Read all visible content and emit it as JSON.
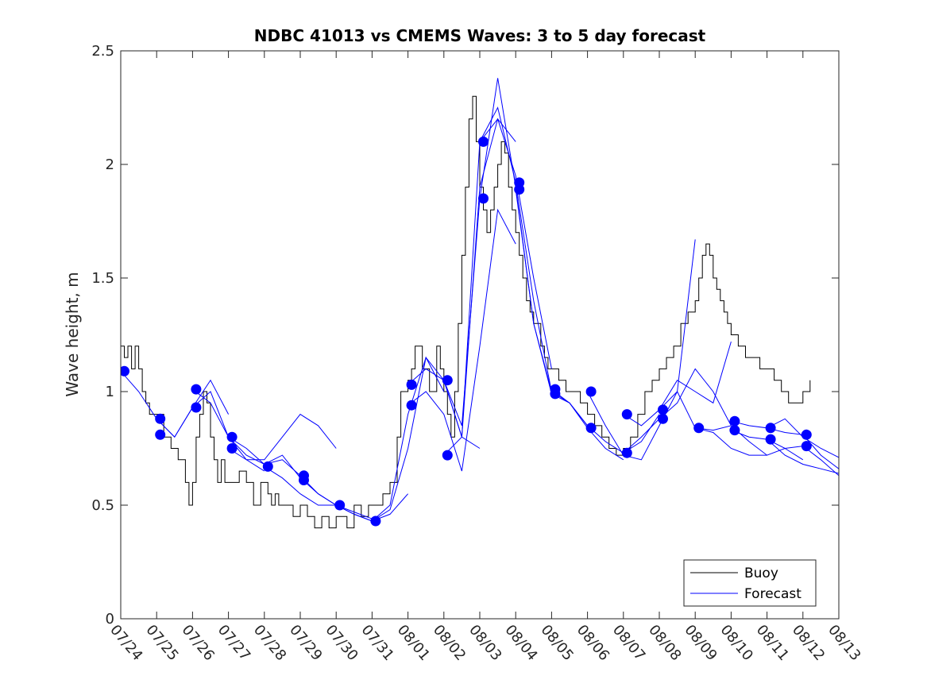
{
  "chart_data": {
    "type": "line",
    "title": "NDBC 41013 vs CMEMS Waves: 3 to 5 day forecast",
    "xlabel": "",
    "ylabel": "Wave height, m",
    "xlim": [
      0,
      20
    ],
    "ylim": [
      0,
      2.5
    ],
    "yticks": [
      0,
      0.5,
      1,
      1.5,
      2,
      2.5
    ],
    "ytick_labels": [
      "0",
      "0.5",
      "1",
      "1.5",
      "2",
      "2.5"
    ],
    "xtick_values": [
      0,
      1,
      2,
      3,
      4,
      5,
      6,
      7,
      8,
      9,
      10,
      11,
      12,
      13,
      14,
      15,
      16,
      17,
      18,
      19,
      20
    ],
    "xtick_labels": [
      "07/24",
      "07/25",
      "07/26",
      "07/27",
      "07/28",
      "07/29",
      "07/30",
      "07/31",
      "08/01",
      "08/02",
      "08/03",
      "08/04",
      "08/05",
      "08/06",
      "08/07",
      "08/08",
      "08/09",
      "08/10",
      "08/11",
      "08/12",
      "08/13"
    ],
    "x_units": "days since 07/24",
    "grid": false,
    "legend": {
      "placement": "bottom-right",
      "entries": [
        {
          "label": "Buoy",
          "color": "#000000"
        },
        {
          "label": "Forecast",
          "color": "#0000ff"
        }
      ]
    },
    "buoy": {
      "name": "Buoy",
      "color": "#000000",
      "x": [
        0,
        0.1,
        0.2,
        0.3,
        0.4,
        0.5,
        0.6,
        0.7,
        0.8,
        1.0,
        1.2,
        1.4,
        1.6,
        1.8,
        1.9,
        2.0,
        2.1,
        2.2,
        2.3,
        2.4,
        2.5,
        2.6,
        2.7,
        2.8,
        2.9,
        3.0,
        3.1,
        3.3,
        3.5,
        3.7,
        3.9,
        4.0,
        4.1,
        4.2,
        4.3,
        4.4,
        4.5,
        4.6,
        4.7,
        4.8,
        5.0,
        5.2,
        5.4,
        5.6,
        5.8,
        6.0,
        6.1,
        6.3,
        6.5,
        6.7,
        6.9,
        7.0,
        7.1,
        7.3,
        7.5,
        7.7,
        7.8,
        8.0,
        8.1,
        8.2,
        8.4,
        8.6,
        8.8,
        8.9,
        9.0,
        9.1,
        9.2,
        9.3,
        9.4,
        9.5,
        9.6,
        9.7,
        9.8,
        9.9,
        10.0,
        10.1,
        10.2,
        10.3,
        10.4,
        10.5,
        10.6,
        10.7,
        10.8,
        10.9,
        11.0,
        11.1,
        11.2,
        11.3,
        11.4,
        11.5,
        11.6,
        11.7,
        11.8,
        11.9,
        12.0,
        12.2,
        12.4,
        12.6,
        12.8,
        13.0,
        13.2,
        13.4,
        13.6,
        13.8,
        14.0,
        14.2,
        14.4,
        14.6,
        14.8,
        15.0,
        15.2,
        15.4,
        15.6,
        15.8,
        16.0,
        16.1,
        16.2,
        16.3,
        16.4,
        16.5,
        16.6,
        16.7,
        16.8,
        16.9,
        17.0,
        17.2,
        17.4,
        17.6,
        17.8,
        18.0,
        18.2,
        18.4,
        18.6,
        18.8,
        19.0,
        19.2
      ],
      "y": [
        1.2,
        1.15,
        1.2,
        1.1,
        1.2,
        1.1,
        1.0,
        0.95,
        0.9,
        0.9,
        0.8,
        0.75,
        0.7,
        0.6,
        0.5,
        0.6,
        0.8,
        0.9,
        1.0,
        0.95,
        0.8,
        0.7,
        0.6,
        0.7,
        0.6,
        0.6,
        0.6,
        0.65,
        0.6,
        0.5,
        0.6,
        0.6,
        0.55,
        0.5,
        0.55,
        0.5,
        0.5,
        0.5,
        0.5,
        0.45,
        0.5,
        0.45,
        0.4,
        0.45,
        0.4,
        0.45,
        0.45,
        0.4,
        0.5,
        0.45,
        0.5,
        0.5,
        0.5,
        0.55,
        0.6,
        0.8,
        1.0,
        1.05,
        1.1,
        1.2,
        1.1,
        1.0,
        1.2,
        1.1,
        1.0,
        0.9,
        0.8,
        1.0,
        1.3,
        1.6,
        1.9,
        2.2,
        2.3,
        2.1,
        1.9,
        1.8,
        1.7,
        1.8,
        1.9,
        2.0,
        2.1,
        2.05,
        1.9,
        1.8,
        1.7,
        1.6,
        1.5,
        1.4,
        1.35,
        1.3,
        1.3,
        1.2,
        1.15,
        1.1,
        1.1,
        1.05,
        1.0,
        1.0,
        0.95,
        0.9,
        0.85,
        0.8,
        0.75,
        0.72,
        0.75,
        0.8,
        0.9,
        1.0,
        1.05,
        1.1,
        1.15,
        1.2,
        1.3,
        1.35,
        1.4,
        1.5,
        1.6,
        1.65,
        1.6,
        1.5,
        1.45,
        1.4,
        1.35,
        1.3,
        1.25,
        1.2,
        1.15,
        1.15,
        1.1,
        1.1,
        1.05,
        1.0,
        0.95,
        0.95,
        1.0,
        1.05
      ]
    },
    "forecasts": [
      {
        "color": "#0000ff",
        "x": [
          0,
          0.5,
          1,
          1.5,
          2,
          2.5,
          3
        ],
        "y": [
          1.09,
          1.0,
          0.88,
          0.8,
          0.93,
          1.05,
          0.9
        ]
      },
      {
        "color": "#0000ff",
        "x": [
          1,
          1.5,
          2,
          2.5,
          3,
          3.5,
          4
        ],
        "y": [
          0.88,
          0.8,
          0.93,
          1.0,
          0.8,
          0.7,
          0.65
        ]
      },
      {
        "color": "#0000ff",
        "x": [
          2,
          2.5,
          3,
          3.5,
          4,
          4.5,
          5
        ],
        "y": [
          1.01,
          0.95,
          0.8,
          0.72,
          0.68,
          0.7,
          0.63
        ]
      },
      {
        "color": "#0000ff",
        "x": [
          3,
          3.5,
          4,
          4.5,
          5,
          5.5,
          6
        ],
        "y": [
          0.8,
          0.75,
          0.68,
          0.72,
          0.62,
          0.55,
          0.5
        ]
      },
      {
        "color": "#0000ff",
        "x": [
          3,
          3.5,
          4,
          4.5,
          5,
          5.5,
          6
        ],
        "y": [
          0.75,
          0.7,
          0.7,
          0.8,
          0.9,
          0.85,
          0.75
        ]
      },
      {
        "color": "#0000ff",
        "x": [
          4,
          4.5,
          5,
          5.5,
          6,
          6.5,
          7
        ],
        "y": [
          0.67,
          0.62,
          0.55,
          0.5,
          0.5,
          0.47,
          0.44
        ]
      },
      {
        "color": "#0000ff",
        "x": [
          5,
          5.5,
          6,
          6.5,
          7,
          7.5,
          8
        ],
        "y": [
          0.63,
          0.55,
          0.5,
          0.46,
          0.43,
          0.46,
          0.55
        ]
      },
      {
        "color": "#0000ff",
        "x": [
          6,
          6.5,
          7,
          7.5,
          8,
          8.5,
          9
        ],
        "y": [
          0.5,
          0.46,
          0.43,
          0.5,
          0.9,
          1.15,
          1.0
        ]
      },
      {
        "color": "#0000ff",
        "x": [
          7,
          7.5,
          8,
          8.5,
          9,
          9.5,
          10
        ],
        "y": [
          0.43,
          0.48,
          0.75,
          1.15,
          1.05,
          0.8,
          0.75
        ]
      },
      {
        "color": "#0000ff",
        "x": [
          8,
          8.5,
          9,
          9.5,
          10,
          10.5,
          11
        ],
        "y": [
          1.03,
          1.1,
          1.05,
          0.8,
          1.9,
          2.2,
          2.1
        ]
      },
      {
        "color": "#0000ff",
        "x": [
          8,
          8.5,
          9,
          9.5,
          10,
          10.5,
          11
        ],
        "y": [
          0.94,
          1.0,
          0.9,
          0.65,
          1.2,
          1.8,
          1.65
        ]
      },
      {
        "color": "#0000ff",
        "x": [
          9,
          9.5,
          10,
          10.5,
          11,
          11.5,
          12
        ],
        "y": [
          1.05,
          0.85,
          1.85,
          2.38,
          1.9,
          1.3,
          1.0
        ]
      },
      {
        "color": "#0000ff",
        "x": [
          9,
          9.5,
          10,
          10.5,
          11,
          11.5,
          12
        ],
        "y": [
          0.72,
          0.8,
          2.1,
          2.2,
          1.95,
          1.5,
          1.1
        ]
      },
      {
        "color": "#0000ff",
        "x": [
          10,
          10.5,
          11,
          11.5,
          12,
          12.5,
          13
        ],
        "y": [
          2.1,
          2.25,
          1.92,
          1.4,
          1.0,
          0.95,
          0.85
        ]
      },
      {
        "color": "#0000ff",
        "x": [
          11,
          11.5,
          12,
          12.5,
          13,
          13.5,
          14
        ],
        "y": [
          1.89,
          1.3,
          0.99,
          0.95,
          0.84,
          0.75,
          0.7
        ]
      },
      {
        "color": "#0000ff",
        "x": [
          12,
          12.5,
          13,
          13.5,
          14,
          14.5,
          15
        ],
        "y": [
          1.01,
          0.95,
          0.85,
          0.78,
          0.73,
          0.78,
          0.9
        ]
      },
      {
        "color": "#0000ff",
        "x": [
          13,
          13.5,
          14,
          14.5,
          15,
          15.5,
          16
        ],
        "y": [
          1.0,
          0.85,
          0.72,
          0.7,
          0.85,
          1.0,
          1.67
        ]
      },
      {
        "color": "#0000ff",
        "x": [
          14,
          14.5,
          15,
          15.5,
          16,
          16.5,
          17
        ],
        "y": [
          0.9,
          0.85,
          0.92,
          1.05,
          1.0,
          0.95,
          1.22
        ]
      },
      {
        "color": "#0000ff",
        "x": [
          14,
          14.5,
          15,
          15.5,
          16,
          16.5,
          17
        ],
        "y": [
          0.73,
          0.8,
          0.88,
          0.95,
          1.1,
          1.0,
          0.85
        ]
      },
      {
        "color": "#0000ff",
        "x": [
          15,
          15.5,
          16,
          16.5,
          17,
          17.5,
          18
        ],
        "y": [
          0.92,
          1.0,
          0.84,
          0.82,
          0.75,
          0.72,
          0.72
        ]
      },
      {
        "color": "#0000ff",
        "x": [
          16,
          16.5,
          17,
          17.5,
          18,
          18.5,
          19
        ],
        "y": [
          0.84,
          0.83,
          0.85,
          0.78,
          0.72,
          0.75,
          0.7
        ]
      },
      {
        "color": "#0000ff",
        "x": [
          17,
          17.5,
          18,
          18.5,
          19,
          19.5,
          20
        ],
        "y": [
          0.87,
          0.85,
          0.84,
          0.88,
          0.8,
          0.75,
          0.71
        ]
      },
      {
        "color": "#0000ff",
        "x": [
          17,
          17.5,
          18,
          18.5,
          19,
          19.5,
          20
        ],
        "y": [
          0.83,
          0.8,
          0.79,
          0.72,
          0.68,
          0.66,
          0.64
        ]
      },
      {
        "color": "#0000ff",
        "x": [
          18,
          18.5,
          19,
          19.5,
          20
        ],
        "y": [
          0.84,
          0.82,
          0.81,
          0.72,
          0.66
        ]
      },
      {
        "color": "#0000ff",
        "x": [
          18,
          18.5,
          19,
          19.5,
          20
        ],
        "y": [
          0.79,
          0.75,
          0.76,
          0.7,
          0.63
        ]
      }
    ],
    "forecast_points": {
      "name": "Forecast",
      "color": "#0000ff",
      "x": [
        0.1,
        1.1,
        1.1,
        2.1,
        2.1,
        3.1,
        3.1,
        4.1,
        5.1,
        5.1,
        6.1,
        7.1,
        8.1,
        8.1,
        9.1,
        9.1,
        10.1,
        10.1,
        11.1,
        11.1,
        12.1,
        12.1,
        13.1,
        13.1,
        14.1,
        14.1,
        15.1,
        15.1,
        16.1,
        17.1,
        17.1,
        18.1,
        18.1,
        19.1,
        19.1
      ],
      "y": [
        1.09,
        0.88,
        0.81,
        1.01,
        0.93,
        0.8,
        0.75,
        0.67,
        0.63,
        0.61,
        0.5,
        0.43,
        1.03,
        0.94,
        1.05,
        0.72,
        2.1,
        1.85,
        1.92,
        1.89,
        1.01,
        0.99,
        1.0,
        0.84,
        0.9,
        0.73,
        0.92,
        0.88,
        0.84,
        0.87,
        0.83,
        0.84,
        0.79,
        0.81,
        0.76
      ]
    }
  }
}
